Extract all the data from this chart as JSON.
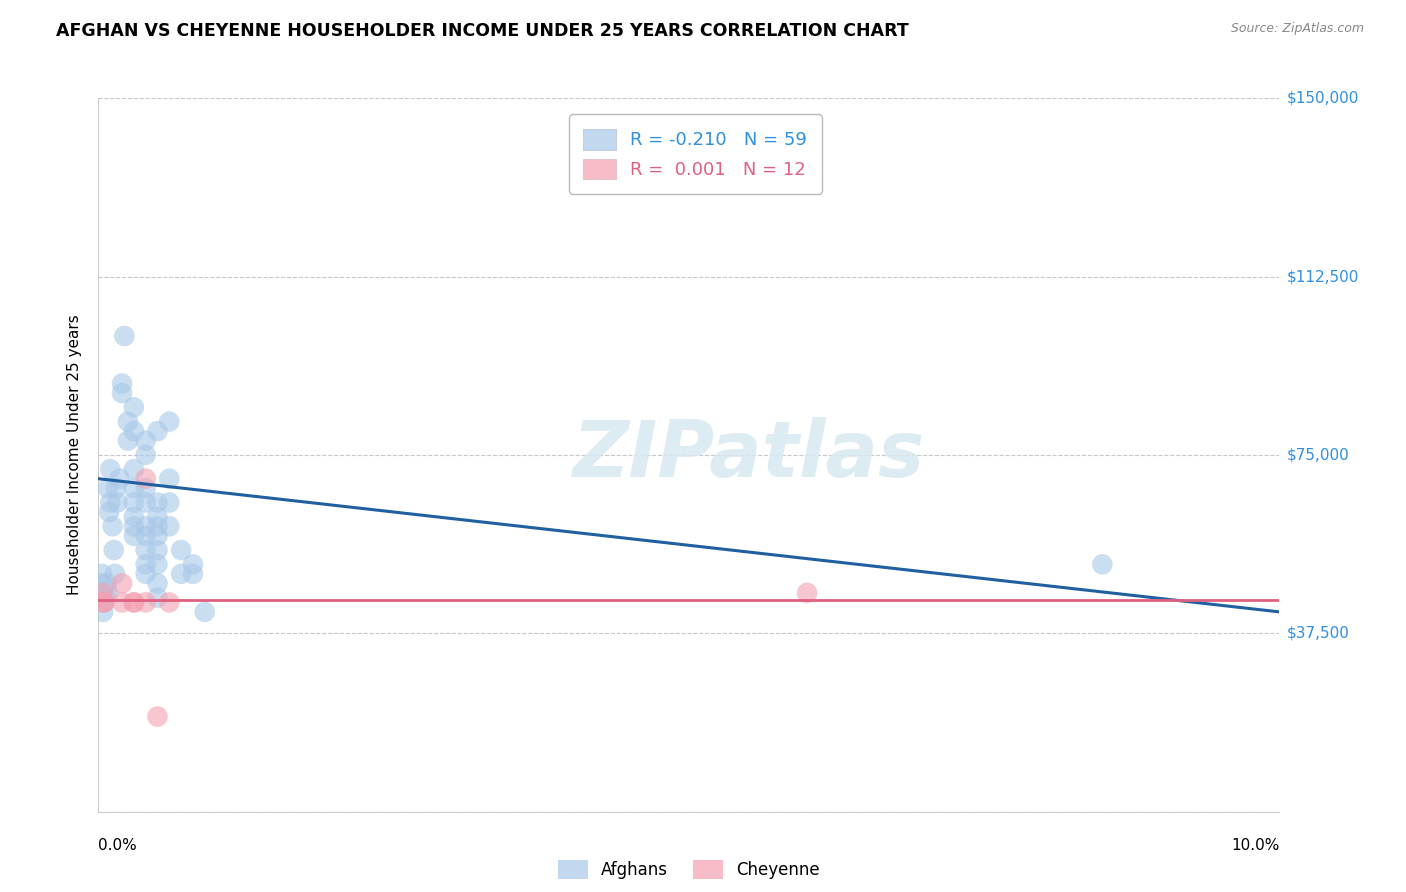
{
  "title": "AFGHAN VS CHEYENNE HOUSEHOLDER INCOME UNDER 25 YEARS CORRELATION CHART",
  "source": "Source: ZipAtlas.com",
  "ylabel": "Householder Income Under 25 years",
  "xlim": [
    0,
    0.1
  ],
  "ylim": [
    0,
    150000
  ],
  "yticks": [
    0,
    37500,
    75000,
    112500,
    150000
  ],
  "ytick_labels": [
    "",
    "$37,500",
    "$75,000",
    "$112,500",
    "$150,000"
  ],
  "xtick_labels": [
    "0.0%",
    "10.0%"
  ],
  "bg_color": "#ffffff",
  "grid_color": "#c8c8c8",
  "watermark": "ZIPatlas",
  "legend_afghan_r": "-0.210",
  "legend_afghan_n": "59",
  "legend_cheyenne_r": "0.001",
  "legend_cheyenne_n": "12",
  "afghan_color": "#a8c8e8",
  "cheyenne_color": "#f4a0b0",
  "afghan_line_color": "#2060a0",
  "cheyenne_line_color": "#e06080",
  "afghan_label_color": "#3090e0",
  "cheyenne_label_color": "#e06080",
  "ytick_color": "#3090e0",
  "afghan_scatter": [
    [
      0.0008,
      68000
    ],
    [
      0.0009,
      63000
    ],
    [
      0.001,
      72000
    ],
    [
      0.001,
      65000
    ],
    [
      0.0012,
      60000
    ],
    [
      0.0013,
      55000
    ],
    [
      0.0014,
      50000
    ],
    [
      0.0007,
      48000
    ],
    [
      0.0008,
      46000
    ],
    [
      0.0015,
      68000
    ],
    [
      0.0016,
      65000
    ],
    [
      0.0018,
      70000
    ],
    [
      0.0006,
      46000
    ],
    [
      0.0005,
      44000
    ],
    [
      0.0004,
      42000
    ],
    [
      0.0003,
      46000
    ],
    [
      0.0003,
      48000
    ],
    [
      0.0003,
      50000
    ],
    [
      0.002,
      90000
    ],
    [
      0.002,
      88000
    ],
    [
      0.0022,
      100000
    ],
    [
      0.0025,
      82000
    ],
    [
      0.0025,
      78000
    ],
    [
      0.003,
      85000
    ],
    [
      0.003,
      80000
    ],
    [
      0.003,
      72000
    ],
    [
      0.003,
      68000
    ],
    [
      0.003,
      65000
    ],
    [
      0.003,
      62000
    ],
    [
      0.003,
      60000
    ],
    [
      0.003,
      58000
    ],
    [
      0.004,
      78000
    ],
    [
      0.004,
      75000
    ],
    [
      0.004,
      68000
    ],
    [
      0.004,
      65000
    ],
    [
      0.004,
      60000
    ],
    [
      0.004,
      58000
    ],
    [
      0.004,
      55000
    ],
    [
      0.004,
      52000
    ],
    [
      0.004,
      50000
    ],
    [
      0.005,
      80000
    ],
    [
      0.005,
      65000
    ],
    [
      0.005,
      62000
    ],
    [
      0.005,
      60000
    ],
    [
      0.005,
      58000
    ],
    [
      0.005,
      55000
    ],
    [
      0.005,
      52000
    ],
    [
      0.005,
      48000
    ],
    [
      0.005,
      45000
    ],
    [
      0.006,
      82000
    ],
    [
      0.006,
      70000
    ],
    [
      0.006,
      65000
    ],
    [
      0.006,
      60000
    ],
    [
      0.007,
      55000
    ],
    [
      0.007,
      50000
    ],
    [
      0.008,
      52000
    ],
    [
      0.008,
      50000
    ],
    [
      0.009,
      42000
    ],
    [
      0.085,
      52000
    ]
  ],
  "cheyenne_scatter": [
    [
      0.0004,
      46000
    ],
    [
      0.0004,
      44000
    ],
    [
      0.0005,
      44000
    ],
    [
      0.002,
      48000
    ],
    [
      0.002,
      44000
    ],
    [
      0.003,
      44000
    ],
    [
      0.003,
      44000
    ],
    [
      0.004,
      70000
    ],
    [
      0.004,
      44000
    ],
    [
      0.005,
      20000
    ],
    [
      0.006,
      44000
    ],
    [
      0.06,
      46000
    ]
  ],
  "afghan_trend_x": [
    0.0,
    0.1
  ],
  "afghan_trend_y": [
    70000,
    42000
  ],
  "cheyenne_trend_x": [
    0.0,
    0.1
  ],
  "cheyenne_trend_y": [
    44500,
    44500
  ]
}
